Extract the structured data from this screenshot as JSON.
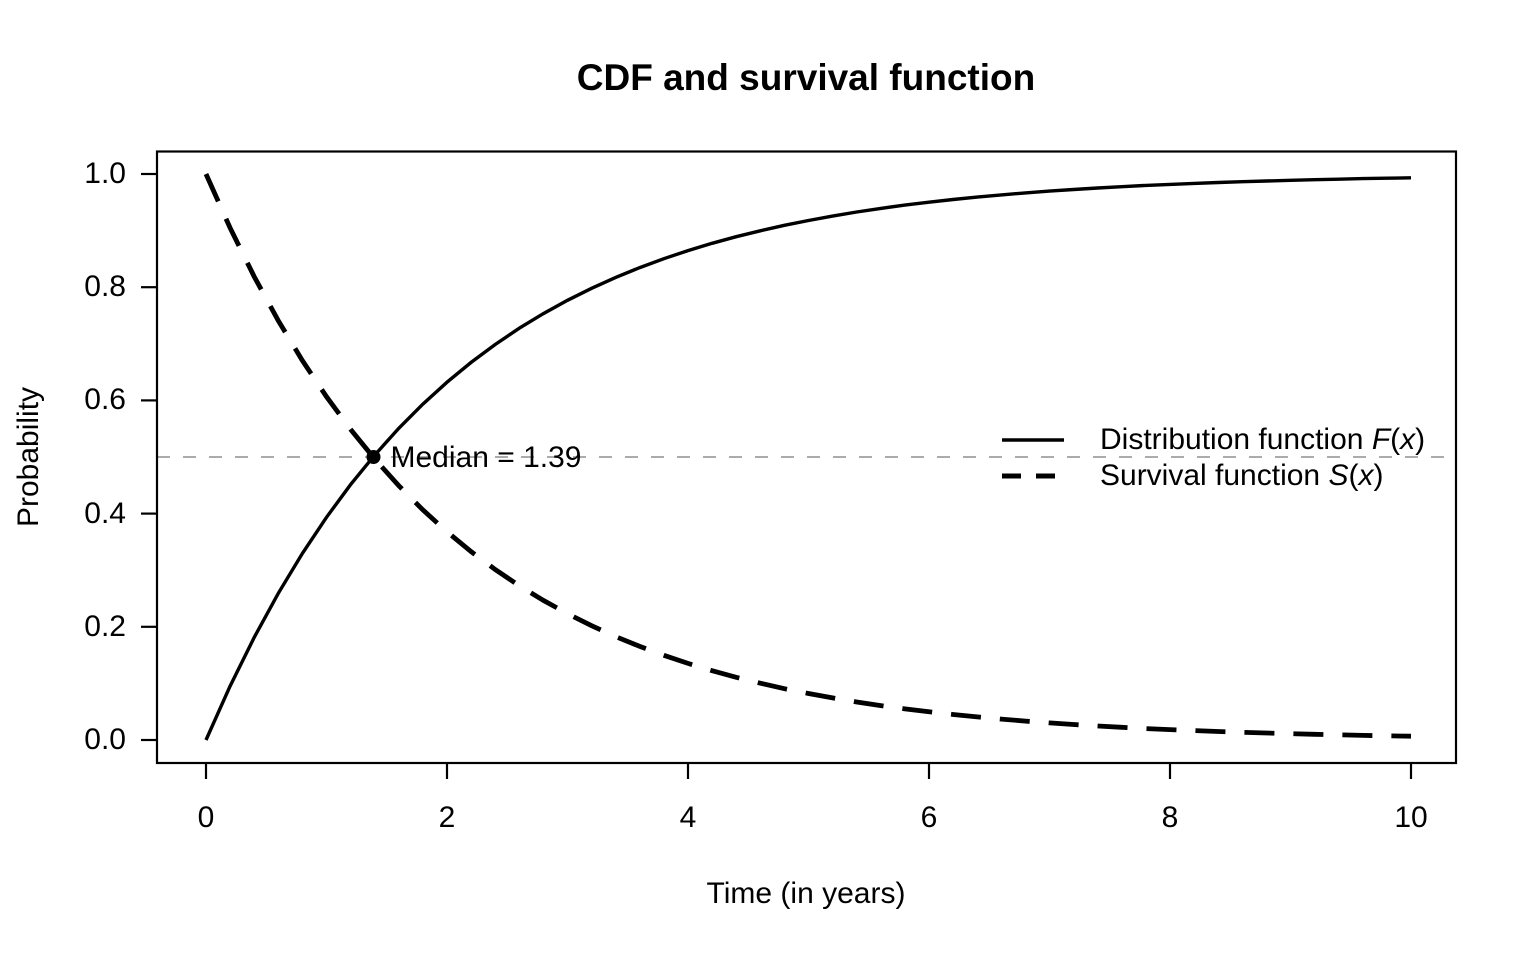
{
  "chart_data": {
    "type": "line",
    "title": "CDF and survival function",
    "xlabel": "Time (in years)",
    "ylabel": "Probability",
    "xlim": [
      0,
      10
    ],
    "ylim": [
      0,
      1
    ],
    "x_ticks": [
      "0",
      "2",
      "4",
      "6",
      "8",
      "10"
    ],
    "y_ticks": [
      "0.0",
      "0.2",
      "0.4",
      "0.6",
      "0.8",
      "1.0"
    ],
    "grid": false,
    "legend_position": "right-middle",
    "colors": {
      "curves": "#000000",
      "reference_line": "#ababab",
      "background": "#ffffff"
    },
    "x": [
      0,
      0.2,
      0.4,
      0.6,
      0.8,
      1.0,
      1.2,
      1.4,
      1.6,
      1.8,
      2.0,
      2.2,
      2.4,
      2.6,
      2.8,
      3.0,
      3.2,
      3.4,
      3.6,
      3.8,
      4.0,
      4.2,
      4.4,
      4.6,
      4.8,
      5.0,
      5.2,
      5.4,
      5.6,
      5.8,
      6.0,
      6.2,
      6.4,
      6.6,
      6.8,
      7.0,
      7.2,
      7.4,
      7.6,
      7.8,
      8.0,
      8.2,
      8.4,
      8.6,
      8.8,
      9.0,
      9.2,
      9.4,
      9.6,
      9.8,
      10.0
    ],
    "series": [
      {
        "id": "cdf-curve",
        "name": "Distribution function F(x)",
        "label_parts": {
          "prefix": "Distribution function ",
          "func": "F",
          "open": "(",
          "arg": "x",
          "close": ")"
        },
        "style": "solid",
        "color": "#000000",
        "values": [
          0.0,
          0.0952,
          0.1813,
          0.2592,
          0.3297,
          0.3935,
          0.4512,
          0.5034,
          0.5507,
          0.5934,
          0.6321,
          0.6671,
          0.6988,
          0.7275,
          0.7534,
          0.7769,
          0.7981,
          0.8173,
          0.8347,
          0.8504,
          0.8647,
          0.8775,
          0.8892,
          0.8997,
          0.9093,
          0.9179,
          0.9257,
          0.9328,
          0.9392,
          0.945,
          0.9502,
          0.955,
          0.9592,
          0.9631,
          0.9666,
          0.9698,
          0.9727,
          0.9753,
          0.9776,
          0.9798,
          0.9817,
          0.9834,
          0.985,
          0.9864,
          0.9877,
          0.9889,
          0.9899,
          0.9909,
          0.9918,
          0.9925,
          0.9933
        ]
      },
      {
        "id": "survival-curve",
        "name": "Survival function S(x)",
        "label_parts": {
          "prefix": "Survival function ",
          "func": "S",
          "open": "(",
          "arg": "x",
          "close": ")"
        },
        "style": "dashed",
        "color": "#000000",
        "values": [
          1.0,
          0.9048,
          0.8187,
          0.7408,
          0.6703,
          0.6065,
          0.5488,
          0.4966,
          0.4493,
          0.4066,
          0.3679,
          0.3329,
          0.3012,
          0.2725,
          0.2466,
          0.2231,
          0.2019,
          0.1827,
          0.1653,
          0.1496,
          0.1353,
          0.1225,
          0.1108,
          0.1003,
          0.0907,
          0.0821,
          0.0743,
          0.0672,
          0.0608,
          0.055,
          0.0498,
          0.045,
          0.0408,
          0.0369,
          0.0334,
          0.0302,
          0.0273,
          0.0247,
          0.0224,
          0.0202,
          0.0183,
          0.0166,
          0.015,
          0.0136,
          0.0123,
          0.0111,
          0.0101,
          0.0091,
          0.0082,
          0.0075,
          0.0067
        ]
      }
    ],
    "reference_line": {
      "y": 0.5,
      "style": "dashed",
      "color": "#ababab"
    },
    "annotation": {
      "label": "Median = 1.39",
      "x": 1.39,
      "y": 0.5,
      "marker": "filled-circle",
      "marker_color": "#000000"
    }
  }
}
